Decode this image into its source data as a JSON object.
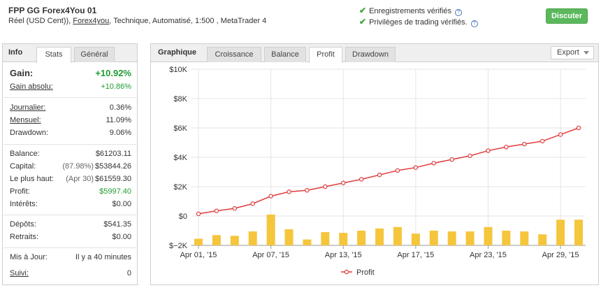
{
  "header": {
    "title": "FPP GG Forex4You 01",
    "sub_prefix": "Réel (USD Cent)), ",
    "broker_link": "Forex4you",
    "sub_suffix": ", Technique, Automatisé, 1:500 , MetaTrader 4",
    "verified_records": "Enregistrements vérifiés",
    "verified_privileges": "Privilèges de trading vérifiés.",
    "help_glyph": "?",
    "check_glyph": "✔",
    "discuss_label": "Discuter"
  },
  "info_panel": {
    "title": "Info",
    "tabs": [
      "Stats",
      "Général"
    ],
    "active_tab": "Stats",
    "gain_label": "Gain:",
    "gain_value": "+10.92%",
    "abs_gain_label": "Gain absolu:",
    "abs_gain_value": "+10.86%",
    "daily_label": "Journalier:",
    "daily_value": "0.36%",
    "monthly_label": "Mensuel:",
    "monthly_value": "11.09%",
    "drawdown_label": "Drawdown:",
    "drawdown_value": "9.06%",
    "balance_label": "Balance:",
    "balance_value": "$61203.11",
    "equity_label": "Capital:",
    "equity_pct": "(87.98%)",
    "equity_value": "$53844.26",
    "highest_label": "Le plus haut:",
    "highest_date": "(Apr 30)",
    "highest_value": "$61559.30",
    "profit_label": "Profit:",
    "profit_value": "$5997.40",
    "interest_label": "Intérêts:",
    "interest_value": "$0.00",
    "deposits_label": "Dépôts:",
    "deposits_value": "$541.35",
    "withdrawals_label": "Retraits:",
    "withdrawals_value": "$0.00",
    "updated_label": "Mis à Jour:",
    "updated_value": "Il y a 40 minutes",
    "follow_label": "Suivi:",
    "follow_value": "0"
  },
  "chart_panel": {
    "title": "Graphique",
    "tabs": [
      "Croissance",
      "Balance",
      "Profit",
      "Drawdown"
    ],
    "active_tab": "Profit",
    "export_label": "Export"
  },
  "chart_data": {
    "type": "line",
    "x_dates": [
      "Apr 01, '15",
      "Apr 02, '15",
      "Apr 03, '15",
      "Apr 06, '15",
      "Apr 07, '15",
      "Apr 08, '15",
      "Apr 09, '15",
      "Apr 10, '15",
      "Apr 13, '15",
      "Apr 14, '15",
      "Apr 15, '15",
      "Apr 16, '15",
      "Apr 17, '15",
      "Apr 20, '15",
      "Apr 21, '15",
      "Apr 22, '15",
      "Apr 23, '15",
      "Apr 24, '15",
      "Apr 27, '15",
      "Apr 28, '15",
      "Apr 29, '15",
      "Apr 30, '15"
    ],
    "x_tick_labels": [
      "Apr 01, '15",
      "Apr 07, '15",
      "Apr 13, '15",
      "Apr 17, '15",
      "Apr 23, '15",
      "Apr 29, '15"
    ],
    "x_tick_indices": [
      0,
      4,
      8,
      12,
      16,
      20
    ],
    "series": [
      {
        "name": "Profit",
        "kind": "line",
        "color": "#e03c3c",
        "values": [
          150,
          350,
          520,
          840,
          1350,
          1650,
          1750,
          2000,
          2250,
          2500,
          2800,
          3100,
          3300,
          3600,
          3850,
          4100,
          4450,
          4700,
          4900,
          5100,
          5550,
          6000
        ]
      },
      {
        "kind": "bar",
        "color": "#f5c53c",
        "values": [
          -1550,
          -1300,
          -1350,
          -1050,
          100,
          -900,
          -1600,
          -1100,
          -1150,
          -1000,
          -850,
          -750,
          -1200,
          -1000,
          -1050,
          -1050,
          -750,
          -1000,
          -1050,
          -1250,
          -250,
          -250
        ]
      }
    ],
    "y_ticks": [
      "$10K",
      "$8K",
      "$6K",
      "$4K",
      "$2K",
      "$0",
      "$−2K"
    ],
    "y_tick_values": [
      10000,
      8000,
      6000,
      4000,
      2000,
      0,
      -2000
    ],
    "ylim": [
      -2000,
      10000
    ],
    "grid": true,
    "legend": "bottom"
  }
}
